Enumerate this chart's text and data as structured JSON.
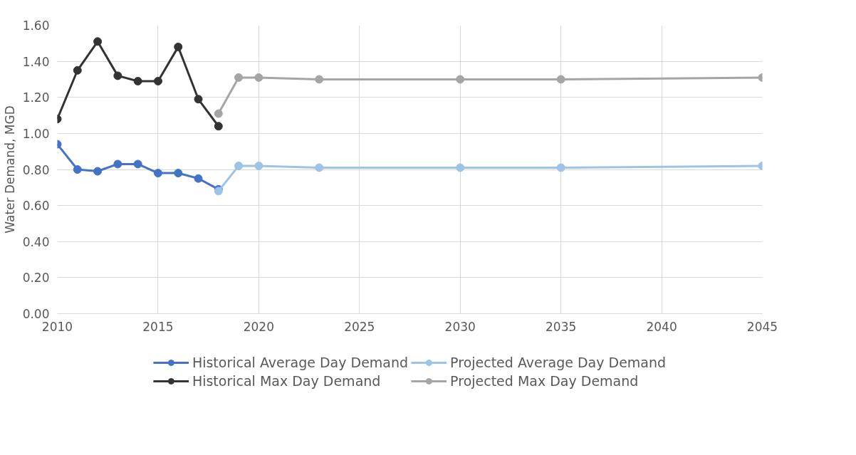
{
  "chart_data": {
    "type": "line",
    "ylabel": "Water Demand, MGD",
    "xlim": [
      2010,
      2045
    ],
    "xticks": [
      2010,
      2015,
      2020,
      2025,
      2030,
      2035,
      2040,
      2045
    ],
    "ylim": [
      0,
      1.6
    ],
    "yticks": [
      {
        "value": 0,
        "label": "0.00"
      },
      {
        "value": 0.2,
        "label": "0.20"
      },
      {
        "value": 0.4,
        "label": "0.40"
      },
      {
        "value": 0.6,
        "label": "0.60"
      },
      {
        "value": 0.8,
        "label": "0.80"
      },
      {
        "value": 1.0,
        "label": "1.00"
      },
      {
        "value": 1.2,
        "label": "1.20"
      },
      {
        "value": 1.4,
        "label": "1.40"
      },
      {
        "value": 1.6,
        "label": "1.60"
      }
    ],
    "grid": true,
    "legend": "bottom",
    "marker": "circle",
    "line_style": "solid",
    "series": [
      {
        "name": "Historical Average Day Demand",
        "color": "#4472c4",
        "x": [
          2010,
          2011,
          2012,
          2013,
          2014,
          2015,
          2016,
          2017,
          2018
        ],
        "values": [
          0.94,
          0.8,
          0.79,
          0.83,
          0.83,
          0.78,
          0.78,
          0.75,
          0.69
        ]
      },
      {
        "name": "Projected Average Day Demand",
        "color": "#9dc3e6",
        "x": [
          2018,
          2019,
          2020,
          2023,
          2030,
          2035,
          2045
        ],
        "values": [
          0.68,
          0.82,
          0.82,
          0.81,
          0.81,
          0.81,
          0.82
        ]
      },
      {
        "name": "Historical Max Day Demand",
        "color": "#333333",
        "x": [
          2010,
          2011,
          2012,
          2013,
          2014,
          2015,
          2016,
          2017,
          2018
        ],
        "values": [
          1.08,
          1.35,
          1.51,
          1.32,
          1.29,
          1.29,
          1.48,
          1.19,
          1.04
        ]
      },
      {
        "name": "Projected Max Day Demand",
        "color": "#a5a5a5",
        "x": [
          2018,
          2019,
          2020,
          2023,
          2030,
          2035,
          2045
        ],
        "values": [
          1.11,
          1.31,
          1.31,
          1.3,
          1.3,
          1.3,
          1.31
        ]
      }
    ]
  }
}
